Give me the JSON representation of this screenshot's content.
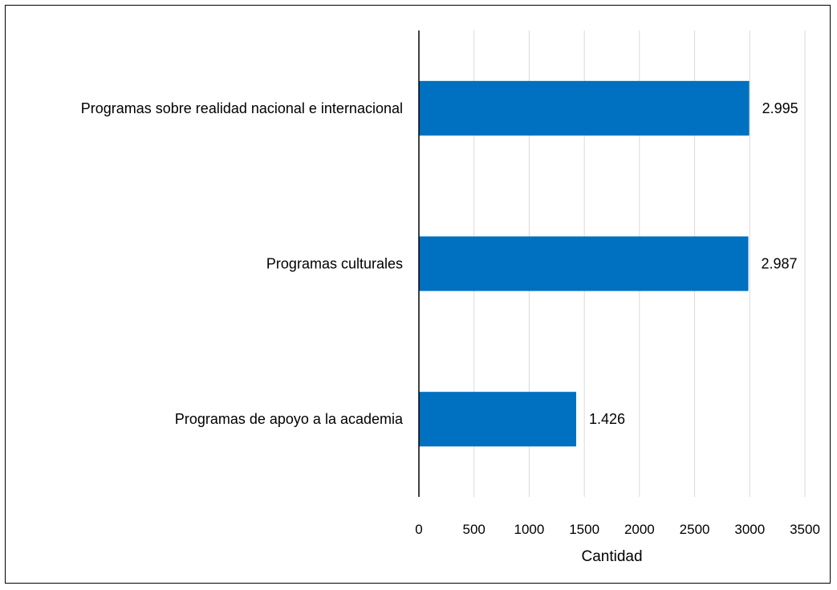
{
  "chart_data": {
    "type": "bar",
    "orientation": "horizontal",
    "categories": [
      "Programas sobre realidad nacional e internacional",
      "Programas culturales",
      "Programas de apoyo a la academia"
    ],
    "values": [
      2995,
      2987,
      1426
    ],
    "value_labels": [
      "2.995",
      "2.987",
      "1.426"
    ],
    "title": "",
    "xlabel": "Cantidad",
    "ylabel": "",
    "xlim": [
      0,
      3500
    ],
    "xticks": [
      0,
      500,
      1000,
      1500,
      2000,
      2500,
      3000,
      3500
    ],
    "xtick_labels": [
      "0",
      "500",
      "1000",
      "1500",
      "2000",
      "2500",
      "3000",
      "3500"
    ],
    "grid": "vertical",
    "legend": "none",
    "bar_color": "#0070C0",
    "gridline_color": "#D9D9D9"
  }
}
